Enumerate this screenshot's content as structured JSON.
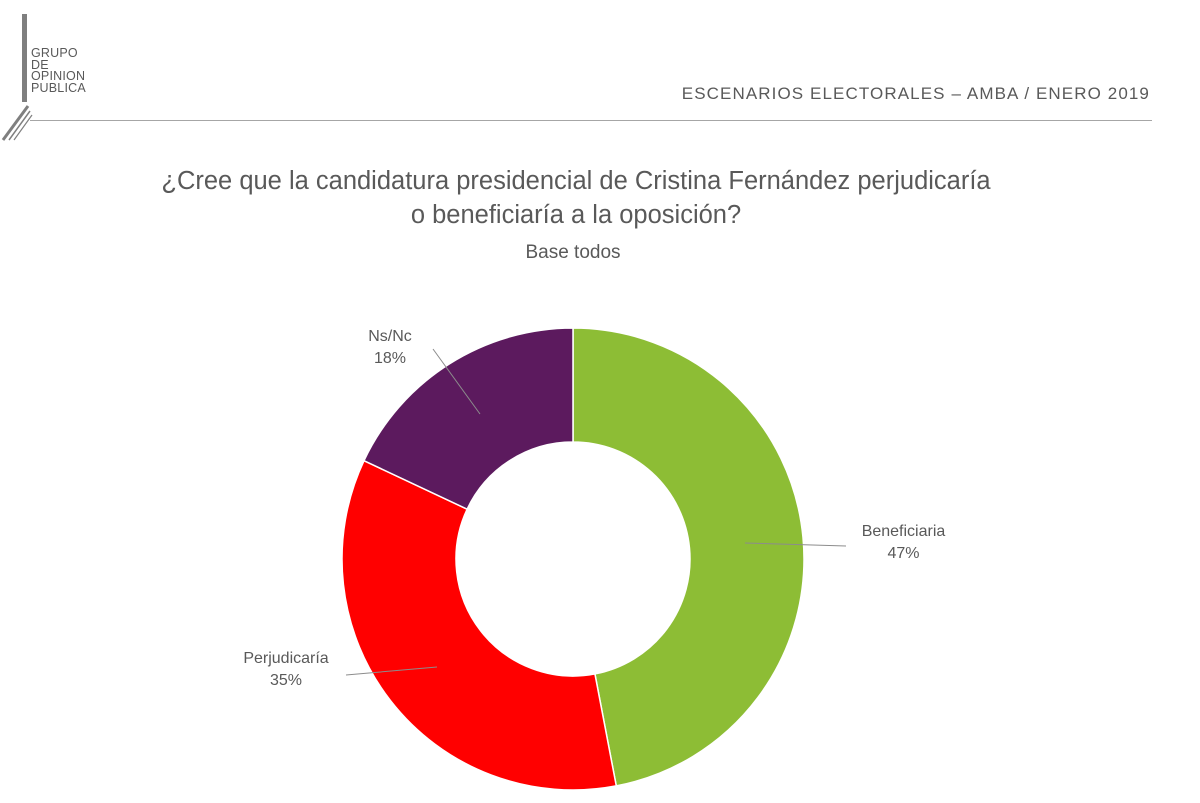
{
  "logo": {
    "lines": [
      "GRUPO",
      "DE",
      "OPINION",
      "PUBLICA"
    ]
  },
  "header": {
    "title": "ESCENARIOS  ELECTORALES  – AMBA  / ENERO  2019"
  },
  "question": {
    "line1": "¿Cree que la candidatura presidencial de Cristina Fernández perjudicaría",
    "line2": "o beneficiaría a la oposición?"
  },
  "base": "Base todos",
  "chart_data": {
    "type": "pie",
    "variant": "donut",
    "title": "¿Cree que la candidatura presidencial de Cristina Fernández perjudicaría o beneficiaría a la oposición?",
    "subtitle": "Base todos",
    "start": "top, clockwise",
    "slices": [
      {
        "label": "Beneficiaria",
        "value": 47,
        "value_label": "47%",
        "color": "#8dbd35"
      },
      {
        "label": "Perjudicaría",
        "value": 35,
        "value_label": "35%",
        "color": "#ff0000"
      },
      {
        "label": "Ns/Nc",
        "value": 18,
        "value_label": "18%",
        "color": "#5c1a5e"
      }
    ]
  }
}
